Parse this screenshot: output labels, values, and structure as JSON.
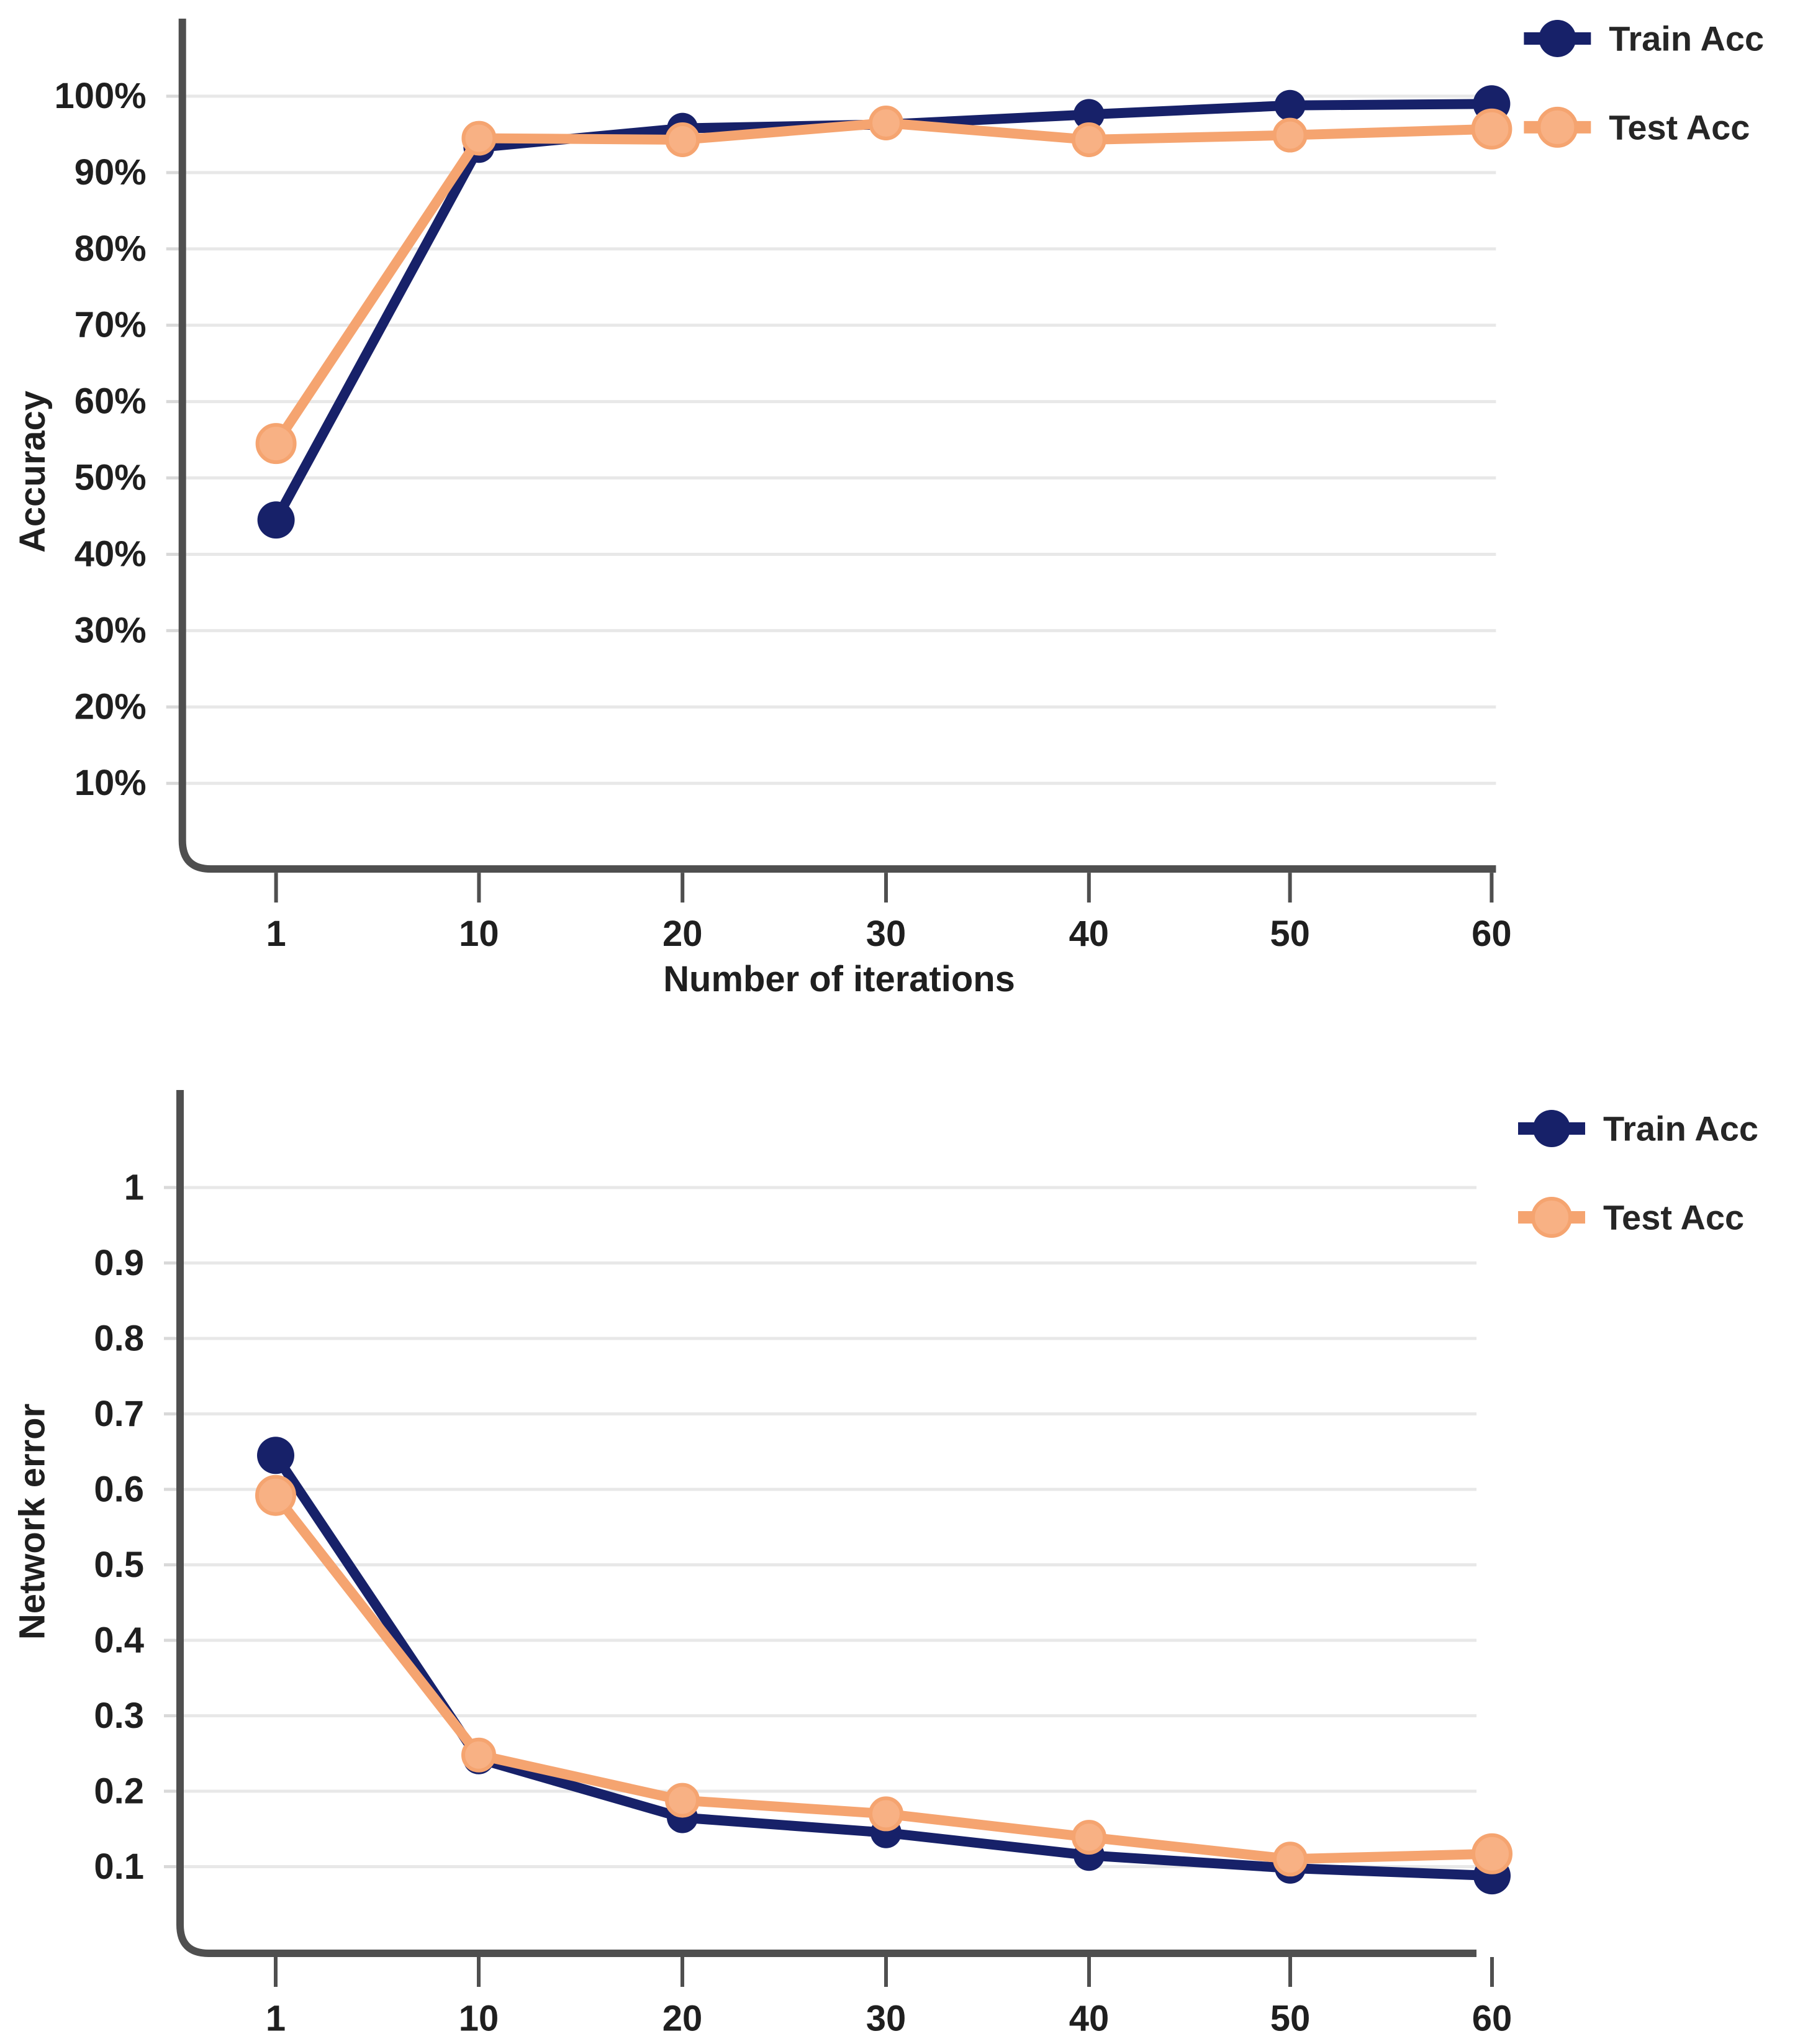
{
  "chart_data": [
    {
      "type": "line",
      "title": "",
      "xlabel": "Number of iterations",
      "ylabel": "Accuracy",
      "x": [
        1,
        10,
        20,
        30,
        40,
        50,
        60
      ],
      "x_tick_labels": [
        "1",
        "10",
        "20",
        "30",
        "40",
        "50",
        "60"
      ],
      "y_ticks": {
        "labels": [
          "100%",
          "90%",
          "80%",
          "70%",
          "60%",
          "50%",
          "40%",
          "30%",
          "20%",
          "10%"
        ],
        "values": [
          100,
          90,
          80,
          70,
          60,
          50,
          40,
          30,
          20,
          10
        ]
      },
      "ylim": [
        0,
        105
      ],
      "grid": "horizontal",
      "legend_position": "right-outside-top",
      "series": [
        {
          "name": "Train Acc",
          "color_key": "train",
          "values": [
            44.5,
            93.3,
            95.8,
            96.3,
            97.6,
            98.8,
            99.0
          ]
        },
        {
          "name": "Test Acc",
          "color_key": "test",
          "values": [
            54.5,
            94.5,
            94.3,
            96.5,
            94.3,
            94.9,
            95.7
          ]
        }
      ]
    },
    {
      "type": "line",
      "title": "",
      "xlabel": "",
      "ylabel": "Network error",
      "x": [
        1,
        10,
        20,
        30,
        40,
        50,
        60
      ],
      "x_tick_labels": [
        "1",
        "10",
        "20",
        "30",
        "40",
        "50",
        "60"
      ],
      "y_ticks": {
        "labels": [
          "1",
          "0.9",
          "0.8",
          "0.7",
          "0.6",
          "0.5",
          "0.4",
          "0.3",
          "0.2",
          "0.1"
        ],
        "values": [
          1,
          0.9,
          0.8,
          0.7,
          0.6,
          0.5,
          0.4,
          0.3,
          0.2,
          0.1
        ]
      },
      "ylim": [
        0,
        1.05
      ],
      "grid": "horizontal",
      "legend_position": "right-outside-top",
      "series": [
        {
          "name": "Train Acc",
          "color_key": "train",
          "values": [
            0.645,
            0.243,
            0.165,
            0.145,
            0.115,
            0.098,
            0.088
          ]
        },
        {
          "name": "Test Acc",
          "color_key": "test",
          "values": [
            0.592,
            0.248,
            0.188,
            0.17,
            0.139,
            0.11,
            0.117
          ]
        }
      ]
    }
  ],
  "colors": {
    "train": "#172169",
    "test": "#f5a470",
    "test_marker_fill": "#f8b184",
    "grid": "#e8e8e8",
    "grid_nub": "#d9d9d9",
    "axis": "#4f4f4f",
    "text": "#1f1f1f"
  }
}
